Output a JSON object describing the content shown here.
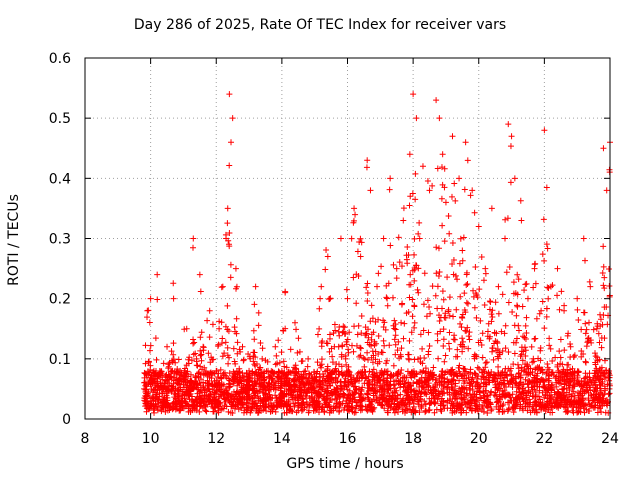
{
  "chart_data": {
    "type": "scatter",
    "title": "Day 286 of 2025, Rate Of TEC Index for receiver vars",
    "xlabel": "GPS time / hours",
    "ylabel": "ROTI / TECUs",
    "xlim": [
      8,
      24
    ],
    "ylim": [
      0,
      0.6
    ],
    "xticks": [
      8,
      10,
      12,
      14,
      16,
      18,
      20,
      22,
      24
    ],
    "yticks": [
      0,
      0.1,
      0.2,
      0.3,
      0.4,
      0.5,
      0.6
    ],
    "grid": true,
    "legend": "none",
    "marker": "+",
    "color": "#ff0000",
    "series": [
      {
        "x": [
          9.8,
          9.9,
          10.0,
          10.1,
          10.2,
          10.3,
          10.5,
          10.7,
          10.9,
          11.1,
          11.2,
          11.3,
          11.4,
          11.5,
          11.6,
          11.8,
          12.0,
          12.2,
          12.3,
          12.35,
          12.4,
          12.45,
          12.5,
          12.6,
          12.8,
          13.0,
          13.2,
          13.4,
          13.6,
          13.8,
          14.0,
          14.1,
          14.2,
          14.4,
          14.6,
          14.8,
          15.0,
          15.2,
          15.4,
          15.6,
          15.8,
          16.0,
          16.2,
          16.4,
          16.6,
          16.7,
          16.9,
          17.1,
          17.3,
          17.5,
          17.7,
          17.9,
          18.0,
          18.1,
          18.2,
          18.3,
          18.5,
          18.7,
          18.8,
          18.9,
          19.0,
          19.2,
          19.4,
          19.5,
          19.6,
          19.8,
          20.0,
          20.2,
          20.4,
          20.6,
          20.8,
          20.9,
          21.0,
          21.1,
          21.3,
          21.5,
          21.7,
          21.9,
          22.0,
          22.2,
          22.4,
          22.6,
          22.8,
          23.0,
          23.2,
          23.4,
          23.6,
          23.8,
          23.9,
          24.0
        ],
        "y": [
          0.05,
          0.18,
          0.2,
          0.08,
          0.24,
          0.06,
          0.12,
          0.2,
          0.08,
          0.15,
          0.06,
          0.3,
          0.1,
          0.24,
          0.12,
          0.18,
          0.08,
          0.22,
          0.3,
          0.35,
          0.54,
          0.46,
          0.5,
          0.25,
          0.12,
          0.08,
          0.22,
          0.1,
          0.06,
          0.12,
          0.08,
          0.21,
          0.05,
          0.16,
          0.07,
          0.1,
          0.05,
          0.22,
          0.27,
          0.12,
          0.3,
          0.2,
          0.35,
          0.27,
          0.43,
          0.38,
          0.22,
          0.3,
          0.4,
          0.25,
          0.33,
          0.44,
          0.54,
          0.5,
          0.3,
          0.42,
          0.38,
          0.53,
          0.5,
          0.44,
          0.36,
          0.47,
          0.4,
          0.28,
          0.46,
          0.38,
          0.32,
          0.25,
          0.35,
          0.22,
          0.3,
          0.49,
          0.47,
          0.4,
          0.33,
          0.2,
          0.25,
          0.18,
          0.48,
          0.22,
          0.25,
          0.18,
          0.12,
          0.2,
          0.3,
          0.22,
          0.15,
          0.45,
          0.38,
          0.46
        ]
      }
    ]
  }
}
